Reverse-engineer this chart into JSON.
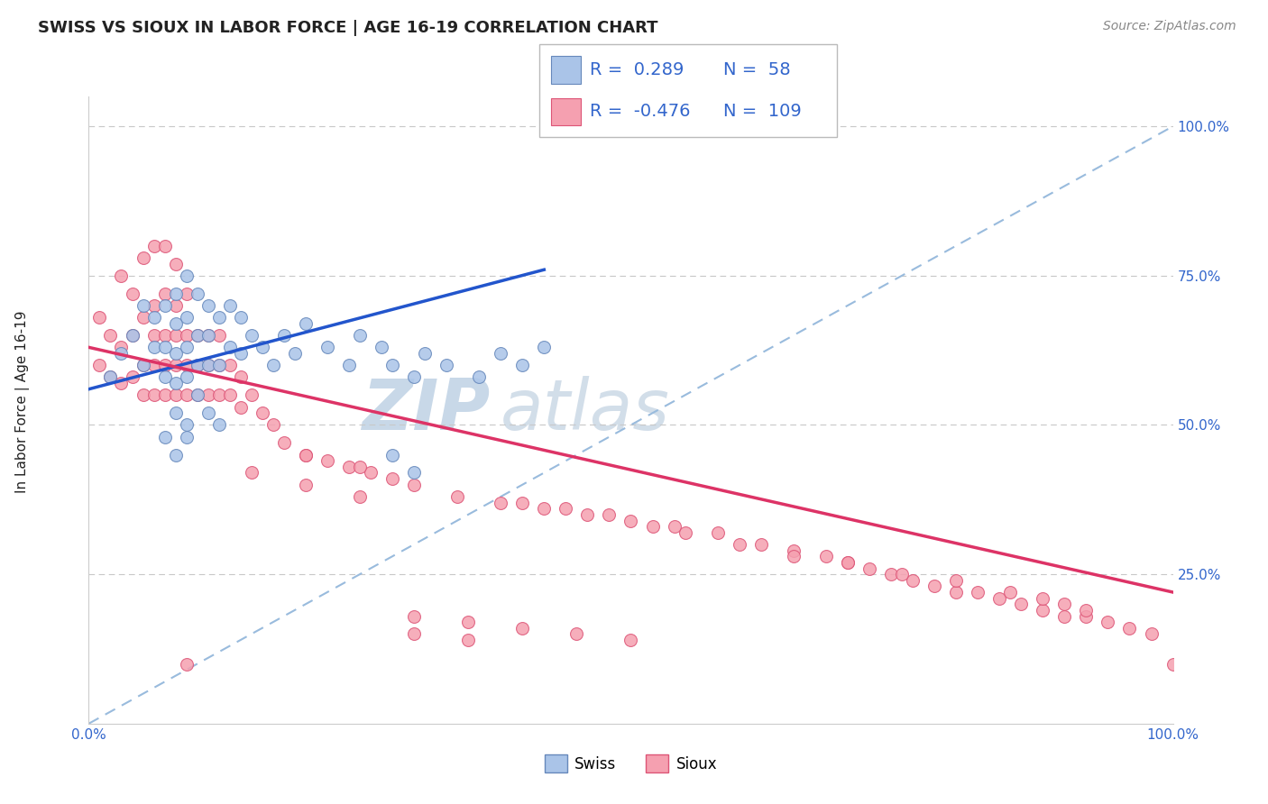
{
  "title": "SWISS VS SIOUX IN LABOR FORCE | AGE 16-19 CORRELATION CHART",
  "source": "Source: ZipAtlas.com",
  "ylabel": "In Labor Force | Age 16-19",
  "xlim": [
    0.0,
    1.0
  ],
  "ylim": [
    0.0,
    1.05
  ],
  "xtick_labels": [
    "0.0%",
    "100.0%"
  ],
  "xtick_positions": [
    0.0,
    1.0
  ],
  "ytick_labels": [
    "25.0%",
    "50.0%",
    "75.0%",
    "100.0%"
  ],
  "ytick_positions": [
    0.25,
    0.5,
    0.75,
    1.0
  ],
  "gridline_color": "#c8c8c8",
  "background_color": "#ffffff",
  "swiss_color": "#aac4e8",
  "sioux_color": "#f5a0b0",
  "swiss_edge_color": "#6688bb",
  "sioux_edge_color": "#dd5577",
  "swiss_line_color": "#2255cc",
  "sioux_line_color": "#dd3366",
  "ref_line_color": "#99bbdd",
  "legend_R_swiss": "0.289",
  "legend_N_swiss": "58",
  "legend_R_sioux": "-0.476",
  "legend_N_sioux": "109",
  "title_fontsize": 13,
  "source_fontsize": 10,
  "axis_label_fontsize": 11,
  "tick_fontsize": 11,
  "legend_fontsize": 14,
  "watermark_zip": "ZIP",
  "watermark_atlas": "atlas",
  "watermark_color_zip": "#c8d8e8",
  "watermark_color_atlas": "#c0d0e0",
  "swiss_x": [
    0.02,
    0.03,
    0.04,
    0.05,
    0.05,
    0.06,
    0.06,
    0.07,
    0.07,
    0.07,
    0.08,
    0.08,
    0.08,
    0.08,
    0.09,
    0.09,
    0.09,
    0.09,
    0.1,
    0.1,
    0.1,
    0.11,
    0.11,
    0.11,
    0.12,
    0.12,
    0.13,
    0.13,
    0.14,
    0.14,
    0.15,
    0.16,
    0.17,
    0.18,
    0.19,
    0.2,
    0.22,
    0.24,
    0.25,
    0.27,
    0.28,
    0.3,
    0.31,
    0.33,
    0.36,
    0.38,
    0.4,
    0.42,
    0.28,
    0.3,
    0.08,
    0.09,
    0.1,
    0.11,
    0.12,
    0.07,
    0.08,
    0.09
  ],
  "swiss_y": [
    0.58,
    0.62,
    0.65,
    0.6,
    0.7,
    0.63,
    0.68,
    0.58,
    0.63,
    0.7,
    0.57,
    0.62,
    0.67,
    0.72,
    0.58,
    0.63,
    0.68,
    0.75,
    0.6,
    0.65,
    0.72,
    0.6,
    0.65,
    0.7,
    0.6,
    0.68,
    0.63,
    0.7,
    0.62,
    0.68,
    0.65,
    0.63,
    0.6,
    0.65,
    0.62,
    0.67,
    0.63,
    0.6,
    0.65,
    0.63,
    0.6,
    0.58,
    0.62,
    0.6,
    0.58,
    0.62,
    0.6,
    0.63,
    0.45,
    0.42,
    0.52,
    0.5,
    0.55,
    0.52,
    0.5,
    0.48,
    0.45,
    0.48
  ],
  "sioux_x": [
    0.01,
    0.01,
    0.02,
    0.02,
    0.03,
    0.03,
    0.04,
    0.04,
    0.05,
    0.05,
    0.05,
    0.06,
    0.06,
    0.06,
    0.06,
    0.07,
    0.07,
    0.07,
    0.07,
    0.08,
    0.08,
    0.08,
    0.08,
    0.09,
    0.09,
    0.09,
    0.09,
    0.1,
    0.1,
    0.1,
    0.11,
    0.11,
    0.11,
    0.12,
    0.12,
    0.12,
    0.13,
    0.13,
    0.14,
    0.14,
    0.15,
    0.16,
    0.17,
    0.18,
    0.2,
    0.22,
    0.24,
    0.26,
    0.28,
    0.3,
    0.34,
    0.38,
    0.42,
    0.46,
    0.5,
    0.54,
    0.58,
    0.62,
    0.65,
    0.68,
    0.7,
    0.72,
    0.74,
    0.76,
    0.78,
    0.8,
    0.82,
    0.84,
    0.86,
    0.88,
    0.9,
    0.92,
    0.94,
    0.96,
    0.98,
    1.0,
    0.55,
    0.6,
    0.65,
    0.7,
    0.75,
    0.8,
    0.85,
    0.88,
    0.9,
    0.92,
    0.4,
    0.44,
    0.48,
    0.52,
    0.03,
    0.04,
    0.05,
    0.06,
    0.07,
    0.08,
    0.09,
    0.15,
    0.2,
    0.25,
    0.3,
    0.35,
    0.2,
    0.25,
    0.3,
    0.35,
    0.4,
    0.45,
    0.5
  ],
  "sioux_y": [
    0.6,
    0.68,
    0.58,
    0.65,
    0.57,
    0.63,
    0.58,
    0.65,
    0.55,
    0.6,
    0.68,
    0.55,
    0.6,
    0.65,
    0.7,
    0.55,
    0.6,
    0.65,
    0.72,
    0.55,
    0.6,
    0.65,
    0.7,
    0.55,
    0.6,
    0.65,
    0.72,
    0.55,
    0.6,
    0.65,
    0.55,
    0.6,
    0.65,
    0.55,
    0.6,
    0.65,
    0.55,
    0.6,
    0.53,
    0.58,
    0.55,
    0.52,
    0.5,
    0.47,
    0.45,
    0.44,
    0.43,
    0.42,
    0.41,
    0.4,
    0.38,
    0.37,
    0.36,
    0.35,
    0.34,
    0.33,
    0.32,
    0.3,
    0.29,
    0.28,
    0.27,
    0.26,
    0.25,
    0.24,
    0.23,
    0.22,
    0.22,
    0.21,
    0.2,
    0.19,
    0.18,
    0.18,
    0.17,
    0.16,
    0.15,
    0.1,
    0.32,
    0.3,
    0.28,
    0.27,
    0.25,
    0.24,
    0.22,
    0.21,
    0.2,
    0.19,
    0.37,
    0.36,
    0.35,
    0.33,
    0.75,
    0.72,
    0.78,
    0.8,
    0.8,
    0.77,
    0.1,
    0.42,
    0.4,
    0.38,
    0.15,
    0.14,
    0.45,
    0.43,
    0.18,
    0.17,
    0.16,
    0.15,
    0.14
  ]
}
